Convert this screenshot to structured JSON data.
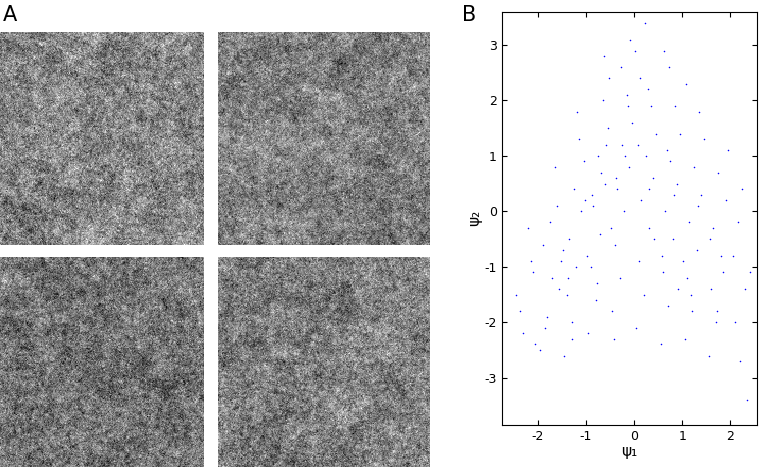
{
  "panel_labels": [
    "A",
    "B"
  ],
  "chart_data": {
    "type": "scatter",
    "xlabel": "ψ₁",
    "ylabel": "ψ₂",
    "color": "#0000ff",
    "marker": ".",
    "xlim": [
      -2.75,
      2.55
    ],
    "xticks": [
      -2,
      -1,
      0,
      1,
      2
    ],
    "ylim": [
      -3.85,
      3.6
    ],
    "yticks": [
      -3,
      -2,
      -1,
      0,
      1,
      2,
      3
    ],
    "x": [
      -2.45,
      -2.3,
      -2.15,
      -2.38,
      -2.05,
      -2.2,
      -2.1,
      -1.95,
      -1.8,
      -1.7,
      -1.9,
      -1.6,
      -1.75,
      -1.55,
      -1.85,
      -1.65,
      -1.52,
      -1.45,
      -1.3,
      -1.4,
      -1.2,
      -1.35,
      -1.1,
      -1.25,
      -1.05,
      -1.15,
      -1.48,
      -1.38,
      -1.02,
      -1.18,
      -1.28,
      -0.95,
      -0.8,
      -0.9,
      -0.7,
      -0.85,
      -0.6,
      -0.75,
      -0.55,
      -0.65,
      -0.52,
      -0.98,
      -0.88,
      -0.68,
      -0.58,
      -0.78,
      -0.62,
      -0.45,
      -0.3,
      -0.4,
      -0.2,
      -0.35,
      -0.1,
      -0.25,
      -0.05,
      -0.15,
      -0.28,
      -0.08,
      -0.48,
      -0.38,
      -0.18,
      -0.42,
      -0.12,
      0.05,
      0.2,
      0.1,
      0.3,
      0.15,
      0.4,
      0.25,
      0.45,
      0.35,
      0.12,
      0.02,
      0.22,
      0.32,
      0.42,
      0.08,
      0.28,
      0.55,
      0.7,
      0.6,
      0.8,
      0.65,
      0.9,
      0.75,
      0.95,
      0.85,
      0.72,
      0.58,
      0.82,
      0.68,
      0.92,
      0.62,
      1.05,
      1.2,
      1.1,
      1.3,
      1.15,
      1.4,
      1.25,
      1.45,
      1.35,
      1.02,
      1.32,
      1.18,
      1.08,
      1.55,
      1.7,
      1.6,
      1.8,
      1.65,
      1.9,
      1.75,
      1.95,
      1.85,
      1.58,
      1.72,
      2.35,
      2.2,
      2.1,
      2.3,
      2.05,
      2.15,
      2.25,
      2.4
    ],
    "values": [
      -1.5,
      -2.2,
      -0.9,
      -1.8,
      -2.4,
      -0.3,
      -1.1,
      -2.5,
      -1.9,
      -1.2,
      -0.6,
      0.1,
      -0.2,
      -1.4,
      -2.1,
      0.8,
      -0.9,
      -2.6,
      -2.0,
      -1.5,
      -1.0,
      -0.5,
      0.0,
      0.4,
      0.9,
      1.3,
      -0.7,
      -1.2,
      0.2,
      1.8,
      -2.3,
      -2.2,
      -1.6,
      -1.0,
      -0.4,
      0.1,
      0.5,
      1.0,
      1.5,
      2.0,
      2.4,
      -0.8,
      0.3,
      0.7,
      1.2,
      -1.3,
      2.8,
      -1.8,
      -1.2,
      -0.6,
      0.0,
      0.4,
      0.8,
      1.2,
      1.6,
      2.1,
      2.6,
      3.1,
      -0.3,
      0.6,
      1.0,
      -2.3,
      1.9,
      -2.1,
      -1.5,
      -0.9,
      -0.3,
      0.2,
      0.6,
      1.0,
      1.4,
      1.9,
      2.4,
      2.9,
      3.4,
      0.4,
      -0.5,
      1.2,
      2.2,
      -2.4,
      -1.7,
      -1.1,
      -0.5,
      0.0,
      0.5,
      0.9,
      1.4,
      1.9,
      2.6,
      -0.8,
      0.3,
      1.1,
      -1.4,
      2.9,
      -2.3,
      -1.8,
      -1.2,
      -0.7,
      -0.2,
      0.3,
      0.8,
      1.3,
      1.8,
      -0.9,
      0.1,
      -1.5,
      2.3,
      -2.6,
      -2.0,
      -1.4,
      -0.8,
      -0.3,
      0.2,
      0.7,
      1.1,
      -1.1,
      -0.5,
      -1.8,
      -3.4,
      -2.7,
      -2.0,
      -1.4,
      -0.8,
      -0.2,
      0.4,
      -1.1
    ]
  }
}
